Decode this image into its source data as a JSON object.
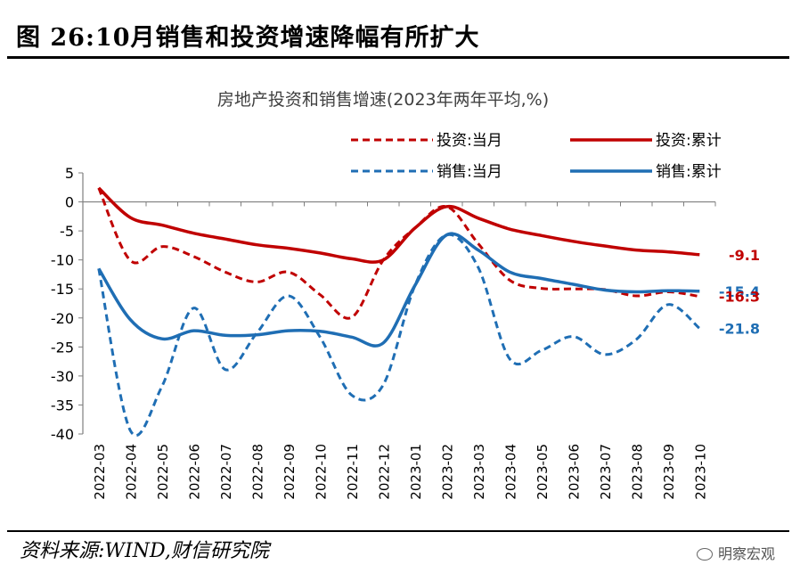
{
  "figure": {
    "title": "图 26:10月销售和投资增速降幅有所扩大",
    "source": "资料来源:WIND,财信研究院",
    "watermark": "明察宏观"
  },
  "chart_data": {
    "type": "line",
    "title": "房地产投资和销售增速(2023年两年平均,%)",
    "categories": [
      "2022-03",
      "2022-04",
      "2022-05",
      "2022-06",
      "2022-07",
      "2022-08",
      "2022-09",
      "2022-10",
      "2022-11",
      "2022-12",
      "2023-01",
      "2023-02",
      "2023-03",
      "2023-04",
      "2023-05",
      "2023-06",
      "2023-07",
      "2023-08",
      "2023-09",
      "2023-10"
    ],
    "ylim": [
      -40,
      5
    ],
    "yticks": [
      5,
      0,
      -5,
      -10,
      -15,
      -20,
      -25,
      -30,
      -35,
      -40
    ],
    "grid": false,
    "legend_position": "top",
    "series": [
      {
        "name": "投资:当月",
        "color": "#C00000",
        "dash": true,
        "values": [
          2.4,
          -10.1,
          -7.7,
          -9.4,
          -12.1,
          -13.8,
          -12.1,
          -16.0,
          -19.9,
          -10.0,
          -4.5,
          -0.8,
          -7.2,
          -13.5,
          -14.9,
          -15.0,
          -15.1,
          -16.2,
          -15.5,
          -16.3
        ]
      },
      {
        "name": "投资:累计",
        "color": "#C00000",
        "dash": false,
        "values": [
          2.4,
          -2.7,
          -4.0,
          -5.4,
          -6.4,
          -7.4,
          -8.0,
          -8.8,
          -9.8,
          -10.0,
          -4.5,
          -0.8,
          -2.8,
          -4.7,
          -5.8,
          -6.8,
          -7.6,
          -8.3,
          -8.6,
          -9.1
        ]
      },
      {
        "name": "销售:当月",
        "color": "#1F6EB4",
        "dash": true,
        "values": [
          -11.5,
          -39.4,
          -31.8,
          -18.3,
          -28.9,
          -22.6,
          -16.2,
          -23.3,
          -33.3,
          -31.5,
          -14.4,
          -5.7,
          -11.3,
          -27.1,
          -25.6,
          -23.2,
          -26.3,
          -23.7,
          -17.7,
          -21.8
        ]
      },
      {
        "name": "销售:累计",
        "color": "#1F6EB4",
        "dash": false,
        "values": [
          -11.5,
          -20.3,
          -23.6,
          -22.2,
          -23.0,
          -22.9,
          -22.2,
          -22.3,
          -23.3,
          -24.3,
          -14.4,
          -5.7,
          -8.3,
          -12.1,
          -13.2,
          -14.2,
          -15.2,
          -15.5,
          -15.3,
          -15.4
        ]
      }
    ],
    "end_labels": [
      {
        "text": "-9.1",
        "value": -9.1,
        "color": "#C00000"
      },
      {
        "text": "-15.4",
        "value": -15.4,
        "color": "#1F6EB4"
      },
      {
        "text": "-16.3",
        "value": -16.3,
        "color": "#C00000"
      },
      {
        "text": "-21.8",
        "value": -21.8,
        "color": "#1F6EB4"
      }
    ]
  }
}
